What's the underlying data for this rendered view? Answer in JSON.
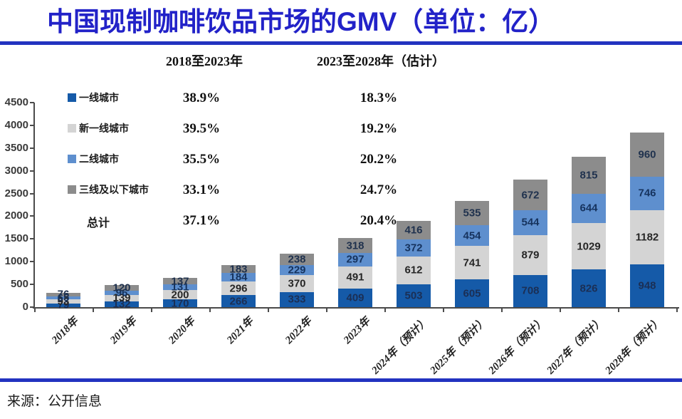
{
  "header": {
    "title": "中国现制咖啡饮品市场的GMV（单位：亿）",
    "period1_label": "2018至2023年",
    "period2_label": "2023至2028年（估计）"
  },
  "cagr_table": {
    "rows": [
      {
        "segment": "一线城市",
        "cagr_2018_2023": "38.9%",
        "cagr_2023_2028": "18.3%"
      },
      {
        "segment": "新一线城市",
        "cagr_2018_2023": "39.5%",
        "cagr_2023_2028": "19.2%"
      },
      {
        "segment": "二线城市",
        "cagr_2018_2023": "35.5%",
        "cagr_2023_2028": "20.2%"
      },
      {
        "segment": "三线及以下城市",
        "cagr_2018_2023": "33.1%",
        "cagr_2023_2028": "24.7%"
      },
      {
        "segment": "总计",
        "cagr_2018_2023": "37.1%",
        "cagr_2023_2028": "20.4%"
      }
    ]
  },
  "chart_data": {
    "type": "bar",
    "stacked": true,
    "title": "中国现制咖啡饮品市场的GMV（单位：亿）",
    "xlabel": "",
    "ylabel": "",
    "unit": "亿",
    "grid": false,
    "legend_position": "upper-left",
    "ylim": [
      0,
      4500
    ],
    "ytick_step": 500,
    "yticks": [
      "0",
      "500",
      "1000",
      "1500",
      "2000",
      "2500",
      "3000",
      "3500",
      "4000",
      "4500"
    ],
    "categories": [
      "2018年",
      "2019年",
      "2020年",
      "2021年",
      "2022年",
      "2023年",
      "2024年（预计）",
      "2025年（预计）",
      "2026年（预计）",
      "2027年（预计）",
      "2028年（预计）"
    ],
    "series": [
      {
        "name": "一线城市",
        "color": "#155aa8",
        "label_color": "#1b2f55",
        "values": [
          79,
          132,
          170,
          266,
          333,
          409,
          503,
          605,
          708,
          826,
          948
        ]
      },
      {
        "name": "新一线城市",
        "color": "#d4d4d4",
        "label_color": "#262626",
        "values": [
          93,
          139,
          200,
          296,
          370,
          491,
          612,
          741,
          879,
          1029,
          1182
        ]
      },
      {
        "name": "二线城市",
        "color": "#5e8fce",
        "label_color": "#16335e",
        "values": [
          65,
          96,
          131,
          184,
          229,
          297,
          372,
          454,
          544,
          644,
          746
        ]
      },
      {
        "name": "三线及以下城市",
        "color": "#8c8c8c",
        "label_color": "#20324e",
        "values": [
          76,
          120,
          137,
          183,
          238,
          318,
          416,
          535,
          672,
          815,
          960
        ]
      }
    ]
  },
  "footer": {
    "source": "来源：公开信息"
  },
  "colors": {
    "title_blue": "#2222c8",
    "rule_blue": "#2233c0"
  }
}
